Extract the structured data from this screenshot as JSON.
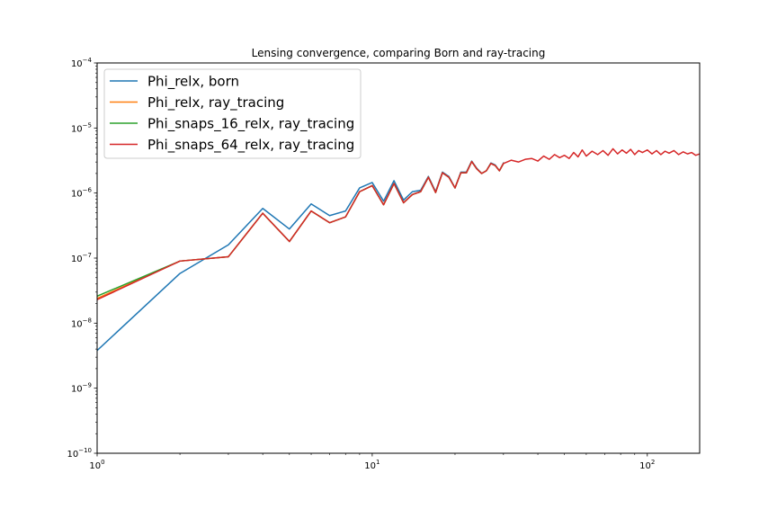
{
  "chart_data": {
    "type": "line",
    "title": "Lensing convergence, comparing Born and ray-tracing",
    "xlabel": "",
    "ylabel": "",
    "xscale": "log",
    "yscale": "log",
    "xlim": [
      1,
      155
    ],
    "ylim": [
      1e-10,
      0.0001
    ],
    "x_ticks": [
      {
        "value": 1,
        "base": "10",
        "exp": "0"
      },
      {
        "value": 10,
        "base": "10",
        "exp": "1"
      },
      {
        "value": 100,
        "base": "10",
        "exp": "2"
      }
    ],
    "y_ticks": [
      {
        "value": 1e-10,
        "base": "10",
        "exp": "−10"
      },
      {
        "value": 1e-09,
        "base": "10",
        "exp": "−9"
      },
      {
        "value": 1e-08,
        "base": "10",
        "exp": "−8"
      },
      {
        "value": 1e-07,
        "base": "10",
        "exp": "−7"
      },
      {
        "value": 1e-06,
        "base": "10",
        "exp": "−6"
      },
      {
        "value": 1e-05,
        "base": "10",
        "exp": "−5"
      },
      {
        "value": 0.0001,
        "base": "10",
        "exp": "−4"
      }
    ],
    "legend_position": "top-left",
    "grid": false,
    "series": [
      {
        "name": "Phi_relx, born",
        "color": "#1f77b4",
        "x": [
          1,
          2,
          3,
          4,
          5,
          6,
          7,
          8,
          9,
          10,
          11,
          12,
          13,
          14,
          15,
          16,
          17,
          18,
          19,
          20,
          21,
          22,
          23,
          24,
          25,
          26,
          27,
          28,
          29,
          30
        ],
        "values": [
          3.8e-09,
          5.8e-08,
          1.6e-07,
          5.8e-07,
          2.8e-07,
          6.8e-07,
          4.5e-07,
          5.3e-07,
          1.2e-06,
          1.45e-06,
          7.5e-07,
          1.55e-06,
          7.8e-07,
          1.05e-06,
          1.1e-06,
          1.8e-06,
          1.05e-06,
          2.1e-06,
          1.8e-06,
          1.2e-06,
          2.1e-06,
          2.1e-06,
          3.1e-06,
          2.4e-06,
          2e-06,
          2.2e-06,
          2.9e-06,
          2.7e-06,
          2.2e-06,
          2.9e-06
        ]
      },
      {
        "name": "Phi_relx, ray_tracing",
        "color": "#ff7f0e",
        "x": [
          1,
          2,
          3,
          4,
          5,
          6,
          7,
          8,
          9,
          10,
          11,
          12,
          13,
          14,
          15,
          16,
          17,
          18,
          19,
          20,
          21,
          22,
          23,
          24,
          25,
          26,
          27,
          28,
          29,
          30
        ],
        "values": [
          2.4e-08,
          9e-08,
          1.05e-07,
          4.9e-07,
          1.8e-07,
          5.3e-07,
          3.5e-07,
          4.3e-07,
          1.05e-06,
          1.3e-06,
          6.6e-07,
          1.4e-06,
          7.1e-07,
          9.5e-07,
          1.05e-06,
          1.75e-06,
          1.02e-06,
          2.05e-06,
          1.75e-06,
          1.2e-06,
          2.05e-06,
          2.05e-06,
          3.05e-06,
          2.35e-06,
          2e-06,
          2.2e-06,
          2.85e-06,
          2.65e-06,
          2.2e-06,
          2.85e-06
        ]
      },
      {
        "name": "Phi_snaps_16_relx, ray_tracing",
        "color": "#2ca02c",
        "x": [
          1,
          2,
          3,
          4,
          5,
          6,
          7,
          8,
          9,
          10,
          11,
          12,
          13,
          14,
          15,
          16,
          17,
          18,
          19,
          20,
          21,
          22,
          23,
          24,
          25,
          26,
          27,
          28,
          29,
          30
        ],
        "values": [
          2.6e-08,
          9e-08,
          1.05e-07,
          4.9e-07,
          1.8e-07,
          5.3e-07,
          3.5e-07,
          4.3e-07,
          1.05e-06,
          1.3e-06,
          6.6e-07,
          1.4e-06,
          7.1e-07,
          9.5e-07,
          1.05e-06,
          1.75e-06,
          1.02e-06,
          2.05e-06,
          1.75e-06,
          1.2e-06,
          2.05e-06,
          2.05e-06,
          3.05e-06,
          2.35e-06,
          2e-06,
          2.2e-06,
          2.85e-06,
          2.65e-06,
          2.2e-06,
          2.85e-06
        ]
      },
      {
        "name": "Phi_snaps_64_relx, ray_tracing",
        "color": "#d62728",
        "x": [
          1,
          2,
          3,
          4,
          5,
          6,
          7,
          8,
          9,
          10,
          11,
          12,
          13,
          14,
          15,
          16,
          17,
          18,
          19,
          20,
          21,
          22,
          23,
          24,
          25,
          26,
          27,
          28,
          29,
          30,
          32,
          34,
          36,
          38,
          40,
          42,
          44,
          46,
          48,
          50,
          52,
          54,
          56,
          58,
          60,
          63,
          66,
          69,
          72,
          75,
          78,
          81,
          84,
          87,
          90,
          93,
          96,
          100,
          104,
          108,
          112,
          116,
          120,
          125,
          130,
          135,
          140,
          145,
          150,
          155
        ],
        "values": [
          2.3e-08,
          9e-08,
          1.05e-07,
          4.9e-07,
          1.8e-07,
          5.3e-07,
          3.5e-07,
          4.3e-07,
          1.05e-06,
          1.3e-06,
          6.6e-07,
          1.4e-06,
          7.1e-07,
          9.5e-07,
          1.05e-06,
          1.75e-06,
          1.02e-06,
          2.05e-06,
          1.75e-06,
          1.2e-06,
          2.05e-06,
          2.05e-06,
          3.05e-06,
          2.35e-06,
          2e-06,
          2.2e-06,
          2.85e-06,
          2.65e-06,
          2.2e-06,
          2.85e-06,
          3.2e-06,
          3e-06,
          3.3e-06,
          3.4e-06,
          3.1e-06,
          3.7e-06,
          3.3e-06,
          3.9e-06,
          3.5e-06,
          3.8e-06,
          3.4e-06,
          4.2e-06,
          3.6e-06,
          4.6e-06,
          3.7e-06,
          4.4e-06,
          3.9e-06,
          4.5e-06,
          3.8e-06,
          4.8e-06,
          4e-06,
          4.6e-06,
          4.1e-06,
          4.7e-06,
          3.9e-06,
          4.5e-06,
          4.2e-06,
          4.6e-06,
          4e-06,
          4.5e-06,
          3.9e-06,
          4.4e-06,
          4.1e-06,
          4.5e-06,
          3.9e-06,
          4.3e-06,
          4e-06,
          4.2e-06,
          3.8e-06,
          4e-06
        ]
      }
    ]
  }
}
